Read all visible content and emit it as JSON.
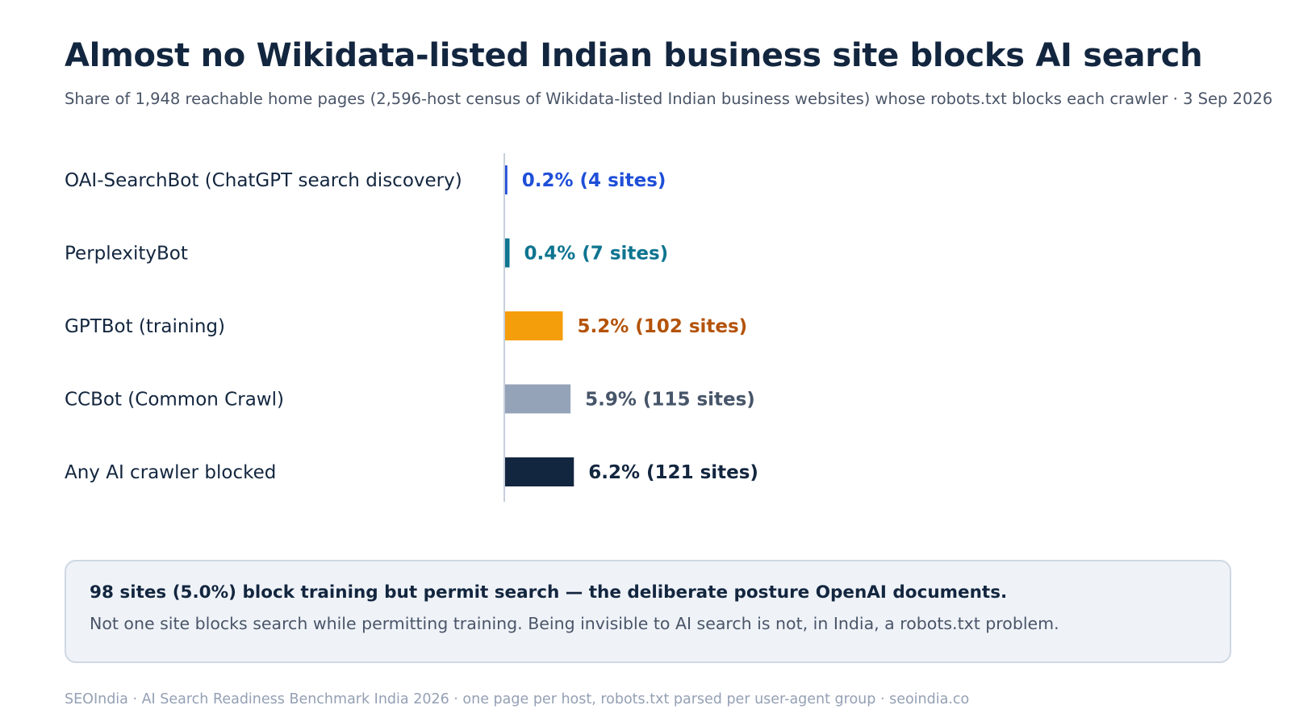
{
  "title": "Almost no Wikidata-listed Indian business site blocks AI search",
  "subtitle": "Share of 1,948 reachable home pages (2,596-host census of Wikidata-listed Indian business websites) whose robots.txt blocks each crawler · 3 Sep 2026",
  "chart_data": {
    "type": "bar",
    "orientation": "horizontal",
    "categories": [
      "OAI-SearchBot (ChatGPT search discovery)",
      "PerplexityBot",
      "GPTBot (training)",
      "CCBot (Common Crawl)",
      "Any AI crawler blocked"
    ],
    "values": [
      0.2,
      0.4,
      5.2,
      5.9,
      6.2
    ],
    "site_counts": [
      4,
      7,
      102,
      115,
      121
    ],
    "value_labels": [
      "0.2% (4 sites)",
      "0.4% (7 sites)",
      "5.2% (102 sites)",
      "5.9% (115 sites)",
      "6.2% (121 sites)"
    ],
    "bar_colors": [
      "#1f4fd8",
      "#0e7490",
      "#f59e0b",
      "#94a3b8",
      "#13263f"
    ],
    "label_colors": [
      "#1f4fd8",
      "#0e7490",
      "#b45309",
      "#475569",
      "#13263f"
    ],
    "unit": "percent",
    "grid": false,
    "legend": "none"
  },
  "callout": {
    "headline": "98 sites (5.0%) block training but permit search — the deliberate posture OpenAI documents.",
    "body": "Not one site blocks search while permitting training. Being invisible to AI search is not, in India, a robots.txt problem."
  },
  "footer": "SEOIndia · AI Search Readiness Benchmark India 2026 · one page per host, robots.txt parsed per user-agent group · seoindia.co"
}
